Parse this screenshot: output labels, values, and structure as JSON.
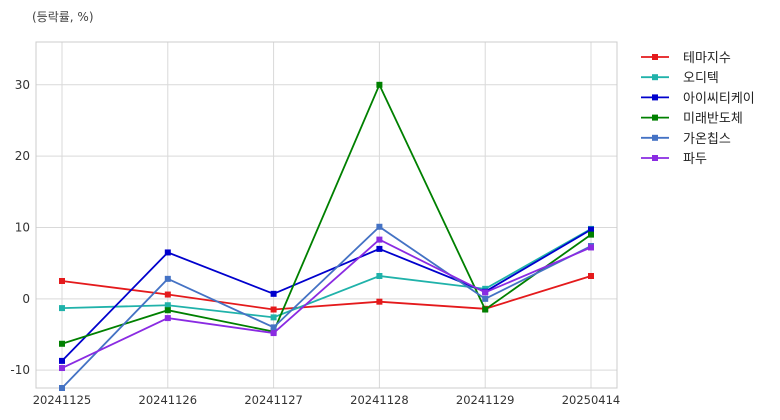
{
  "chart_data": {
    "type": "line",
    "unit_label": "(등락률, %)",
    "categories": [
      "20241125",
      "20241126",
      "20241127",
      "20241128",
      "20241129",
      "20250414"
    ],
    "yticks": [
      -10,
      0,
      10,
      20,
      30
    ],
    "ylim": [
      -12.5,
      36
    ],
    "grid": true,
    "legend_position": "top-right outside",
    "series": [
      {
        "name": "테마지수",
        "color": "#e41a1c",
        "values": [
          2.5,
          0.6,
          -1.5,
          -0.4,
          -1.4,
          3.2
        ]
      },
      {
        "name": "오디텍",
        "color": "#20b2aa",
        "values": [
          -1.3,
          -0.9,
          -2.6,
          3.2,
          1.4,
          9.8
        ]
      },
      {
        "name": "아이씨티케이",
        "color": "#0000cd",
        "values": [
          -8.7,
          6.5,
          0.7,
          7.0,
          1.0,
          9.7
        ]
      },
      {
        "name": "미래반도체",
        "color": "#008000",
        "values": [
          -6.3,
          -1.6,
          -4.6,
          30.0,
          -1.5,
          9.0
        ]
      },
      {
        "name": "가온칩스",
        "color": "#4472c4",
        "values": [
          -12.5,
          2.8,
          -4.0,
          10.1,
          0.0,
          7.4
        ]
      },
      {
        "name": "파두",
        "color": "#8a2be2",
        "values": [
          -9.7,
          -2.7,
          -4.8,
          8.3,
          0.9,
          7.2
        ]
      }
    ]
  }
}
